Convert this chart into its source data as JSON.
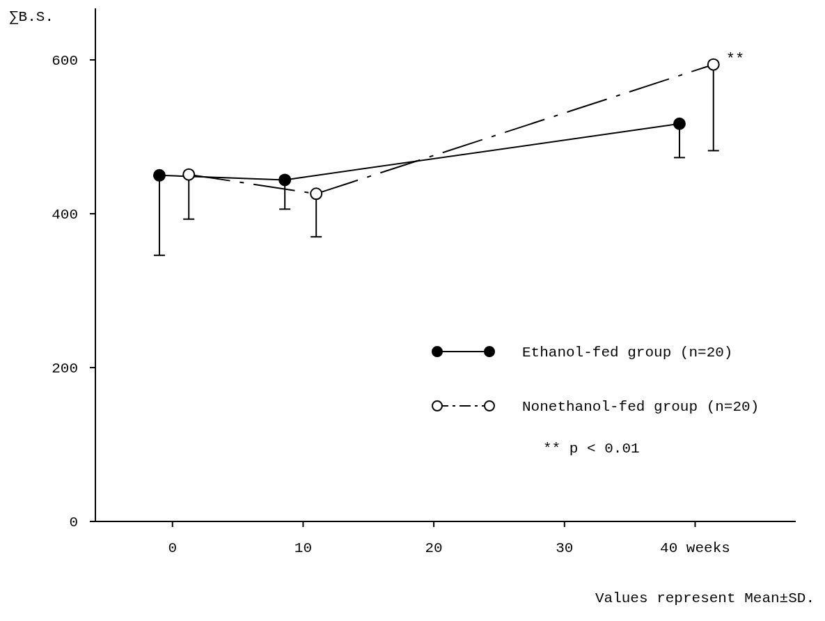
{
  "chart_data": {
    "type": "line",
    "ylabel": "∑B.S.",
    "xlim": [
      -5.9,
      47.7
    ],
    "ylim": [
      0,
      667
    ],
    "xticks": [
      0,
      10,
      20,
      30,
      {
        "value": 40,
        "label": "40 weeks"
      }
    ],
    "yticks": [
      0,
      200,
      400,
      600
    ],
    "series": [
      {
        "name": "Ethanol-fed group (n=20)",
        "color": "#000000",
        "x": [
          -1,
          8.6,
          38.8
        ],
        "values": [
          450,
          444,
          517
        ],
        "errors": [
          [
            346,
            450
          ],
          [
            406,
            444
          ],
          [
            473,
            517
          ]
        ],
        "line_style": "solid",
        "marker": "circle"
      },
      {
        "name": "Nonethanol-fed group (n=20)",
        "color": "#000000",
        "x": [
          1.25,
          11,
          41.4
        ],
        "values": [
          451,
          426,
          594
        ],
        "errors": [
          [
            393,
            451
          ],
          [
            370,
            426
          ],
          [
            482,
            594
          ]
        ],
        "line_style": "dashed",
        "marker": "circle"
      }
    ],
    "annotations": [
      {
        "text": "**",
        "x": 41.4,
        "y": 594
      },
      "** p < 0.01",
      "Values represent Mean±SD."
    ],
    "legend": "right",
    "grid": false
  }
}
